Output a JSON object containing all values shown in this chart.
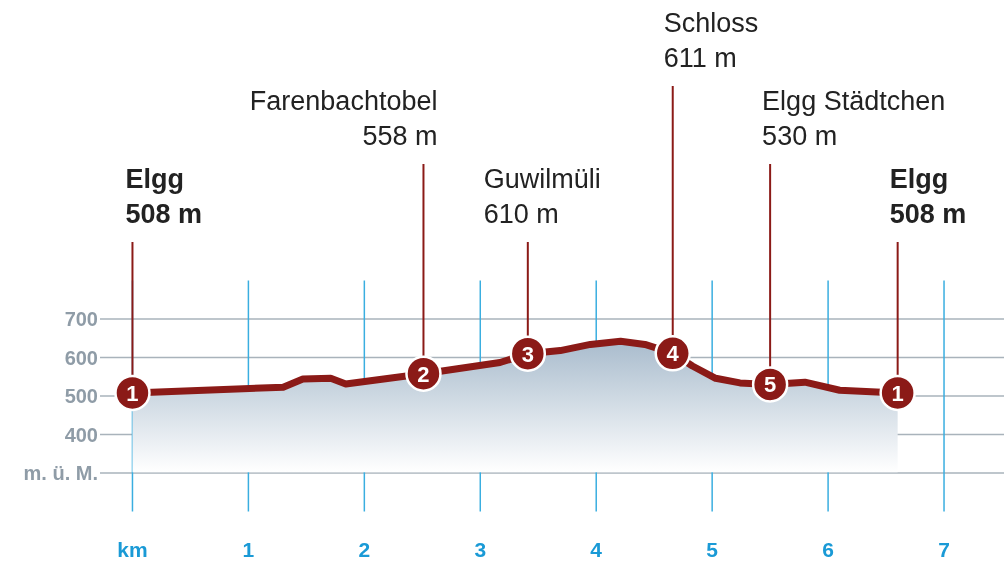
{
  "chart_data": {
    "type": "area",
    "x": [
      0,
      1.3,
      1.47,
      1.71,
      1.84,
      2.51,
      3.17,
      3.41,
      3.69,
      3.95,
      4.21,
      4.42,
      4.66,
      4.83,
      5.03,
      5.24,
      5.5,
      5.8,
      6.1,
      6.6
    ],
    "series": [
      {
        "color": "#8b1a17",
        "values": [
          508,
          523,
          544,
          546,
          531,
          558,
          587,
          610,
          618,
          634,
          642,
          634,
          611,
          578,
          546,
          534,
          530,
          536,
          515,
          508
        ]
      }
    ],
    "xlim": [
      -0.28,
      7.5
    ],
    "ylim": [
      200,
      800
    ],
    "xticks": [
      {
        "value": 0,
        "label": "km"
      },
      1,
      2,
      3,
      4,
      5,
      6,
      7
    ],
    "yticks": [
      {
        "value": 300,
        "label": "m. ü. M."
      },
      400,
      500,
      600,
      700
    ],
    "grid": true,
    "marker": "none",
    "annotations": [
      {
        "text": "Elgg\n508 m",
        "x": 0,
        "y": 508
      },
      {
        "text": "Farenbachtobel\n558 m",
        "x": 2.51,
        "y": 558
      },
      {
        "text": "Guwilmüli\n610 m",
        "x": 3.41,
        "y": 610
      },
      {
        "text": "Schloss\n611 m",
        "x": 4.66,
        "y": 611
      },
      {
        "text": "Elgg Städtchen\n530 m",
        "x": 5.5,
        "y": 530
      },
      {
        "text": "Elgg\n508 m",
        "x": 6.6,
        "y": 508
      },
      {
        "text": "1",
        "x": 0,
        "y": 508
      },
      {
        "text": "2",
        "x": 2.51,
        "y": 558
      },
      {
        "text": "3",
        "x": 3.41,
        "y": 610
      },
      {
        "text": "4",
        "x": 4.66,
        "y": 611
      },
      {
        "text": "5",
        "x": 5.5,
        "y": 530
      },
      {
        "text": "1",
        "x": 6.6,
        "y": 508
      }
    ]
  }
}
